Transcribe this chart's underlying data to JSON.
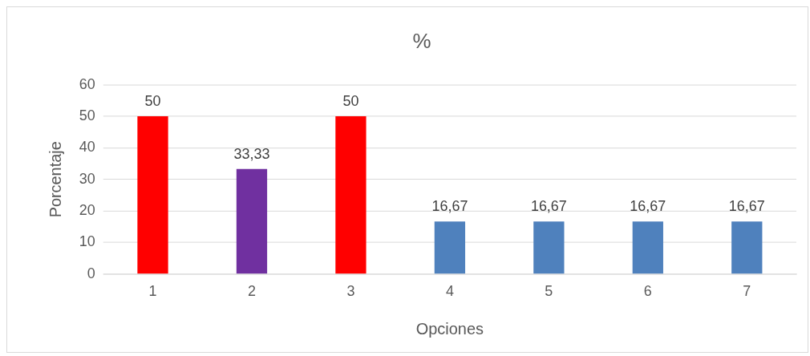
{
  "chart_data": {
    "type": "bar",
    "title": "%",
    "xlabel": "Opciones",
    "ylabel": "Porcentaje",
    "categories": [
      "1",
      "2",
      "3",
      "4",
      "5",
      "6",
      "7"
    ],
    "values": [
      50,
      33.33,
      50,
      16.67,
      16.67,
      16.67,
      16.67
    ],
    "colors": [
      "#ff0000",
      "#7030a0",
      "#ff0000",
      "#4f81bd",
      "#4f81bd",
      "#4f81bd",
      "#4f81bd"
    ],
    "value_labels": [
      "50",
      "33,33",
      "50",
      "16,67",
      "16,67",
      "16,67",
      "16,67"
    ],
    "ylim": [
      0,
      60
    ],
    "yticks": [
      0,
      10,
      20,
      30,
      40,
      50,
      60
    ],
    "grid": "y",
    "legend": false
  }
}
